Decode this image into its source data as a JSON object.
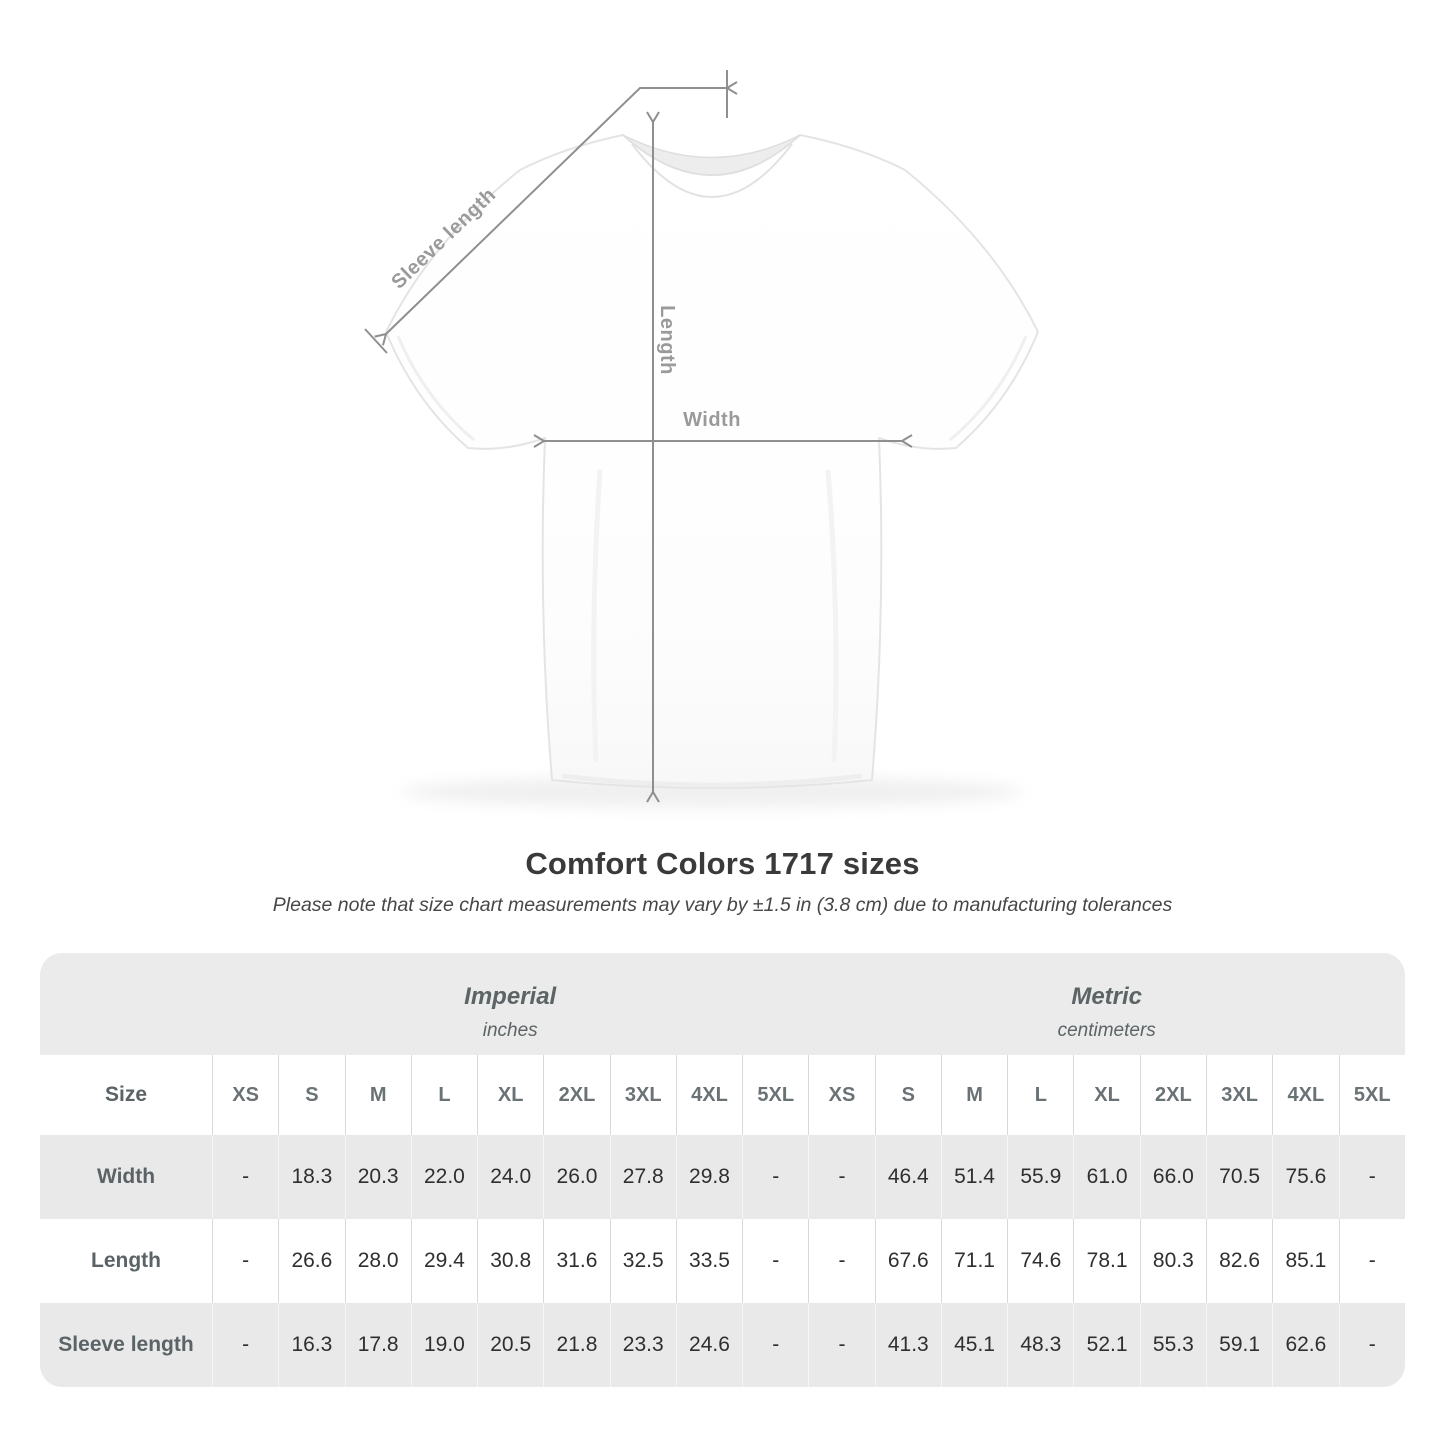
{
  "title": "Comfort Colors 1717 sizes",
  "subtitle": "Please note that size chart measurements may vary by ±1.5 in (3.8 cm) due to manufacturing tolerances",
  "diagram": {
    "sleeve_length_label": "Sleeve length",
    "length_label": "Length",
    "width_label": "Width"
  },
  "colors": {
    "measure_line": "#8f8f8f",
    "measure_label": "#9a9a9a",
    "header_band": "#ebebeb",
    "row_alt": "#e9e9e9",
    "value_text": "#2f2f2f",
    "label_text": "#5b6366"
  },
  "chart_data": {
    "type": "table",
    "title": "Comfort Colors 1717 sizes",
    "note": "Please note that size chart measurements may vary by ±1.5 in (3.8 cm) due to manufacturing tolerances",
    "size_header": "Size",
    "sections": [
      {
        "name": "Imperial",
        "unit": "inches"
      },
      {
        "name": "Metric",
        "unit": "centimeters"
      }
    ],
    "sizes": [
      "XS",
      "S",
      "M",
      "L",
      "XL",
      "2XL",
      "3XL",
      "4XL",
      "5XL"
    ],
    "rows": [
      {
        "label": "Width",
        "imperial": [
          "-",
          "18.3",
          "20.3",
          "22.0",
          "24.0",
          "26.0",
          "27.8",
          "29.8",
          "-"
        ],
        "metric": [
          "-",
          "46.4",
          "51.4",
          "55.9",
          "61.0",
          "66.0",
          "70.5",
          "75.6",
          "-"
        ]
      },
      {
        "label": "Length",
        "imperial": [
          "-",
          "26.6",
          "28.0",
          "29.4",
          "30.8",
          "31.6",
          "32.5",
          "33.5",
          "-"
        ],
        "metric": [
          "-",
          "67.6",
          "71.1",
          "74.6",
          "78.1",
          "80.3",
          "82.6",
          "85.1",
          "-"
        ]
      },
      {
        "label": "Sleeve length",
        "imperial": [
          "-",
          "16.3",
          "17.8",
          "19.0",
          "20.5",
          "21.8",
          "23.3",
          "24.6",
          "-"
        ],
        "metric": [
          "-",
          "41.3",
          "45.1",
          "48.3",
          "52.1",
          "55.3",
          "59.1",
          "62.6",
          "-"
        ]
      }
    ]
  }
}
